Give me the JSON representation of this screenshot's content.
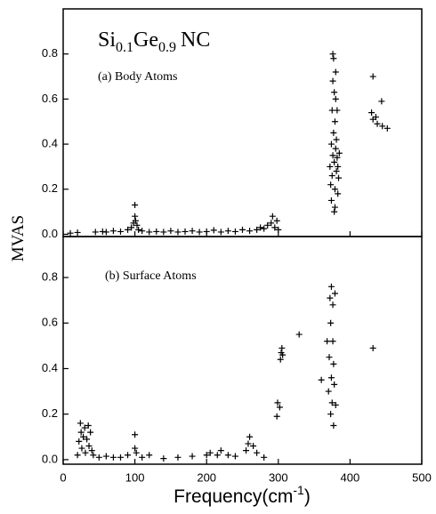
{
  "title": [
    "Si",
    "0.1",
    "Ge",
    "0.9",
    "NC"
  ],
  "y_label": "MVAS",
  "x_label": [
    "Frequency(cm",
    "-1",
    ")"
  ],
  "chart_data": [
    {
      "type": "scatter",
      "annotation": "(a) Body Atoms",
      "color": "#000000",
      "xlim": [
        0,
        500
      ],
      "xticks": [
        0,
        100,
        200,
        300,
        400,
        500
      ],
      "ylim": [
        -0.01,
        1.0
      ],
      "yticks": [
        {
          "value": 0,
          "label": "0.0"
        },
        0.2,
        0.4,
        0.6,
        0.8
      ],
      "x": [
        10,
        20,
        45,
        55,
        60,
        70,
        80,
        90,
        95,
        98,
        100,
        100,
        101,
        103,
        105,
        110,
        120,
        130,
        140,
        150,
        160,
        170,
        180,
        190,
        200,
        210,
        220,
        230,
        240,
        250,
        260,
        270,
        275,
        280,
        285,
        290,
        292,
        295,
        298,
        300,
        372,
        373,
        374,
        374,
        375,
        375,
        376,
        376,
        377,
        377,
        378,
        378,
        378,
        379,
        379,
        380,
        380,
        381,
        381,
        382,
        382,
        383,
        383,
        384,
        385,
        376,
        379,
        380,
        432,
        444,
        430,
        432,
        438,
        445,
        452,
        436
      ],
      "y": [
        0.005,
        0.008,
        0.01,
        0.012,
        0.01,
        0.015,
        0.012,
        0.02,
        0.03,
        0.05,
        0.08,
        0.13,
        0.06,
        0.04,
        0.02,
        0.015,
        0.01,
        0.012,
        0.01,
        0.015,
        0.01,
        0.012,
        0.015,
        0.01,
        0.012,
        0.018,
        0.01,
        0.015,
        0.012,
        0.02,
        0.015,
        0.02,
        0.03,
        0.025,
        0.04,
        0.05,
        0.08,
        0.03,
        0.06,
        0.02,
        0.3,
        0.22,
        0.4,
        0.15,
        0.55,
        0.26,
        0.35,
        0.68,
        0.78,
        0.45,
        0.1,
        0.32,
        0.63,
        0.2,
        0.5,
        0.38,
        0.72,
        0.28,
        0.42,
        0.34,
        0.55,
        0.18,
        0.3,
        0.25,
        0.36,
        0.8,
        0.12,
        0.6,
        0.7,
        0.59,
        0.54,
        0.51,
        0.49,
        0.48,
        0.47,
        0.52
      ]
    },
    {
      "type": "scatter",
      "annotation": "(b) Surface Atoms",
      "color": "#000000",
      "xlim": [
        0,
        500
      ],
      "xticks": [
        0,
        100,
        200,
        300,
        400,
        500
      ],
      "ylim": [
        -0.02,
        0.98
      ],
      "yticks": [
        {
          "value": 0,
          "label": "0.0"
        },
        0.2,
        0.4,
        0.6,
        0.8
      ],
      "x": [
        20,
        22,
        24,
        25,
        26,
        28,
        30,
        31,
        33,
        35,
        36,
        38,
        40,
        42,
        50,
        60,
        70,
        80,
        90,
        100,
        100,
        102,
        110,
        120,
        140,
        160,
        180,
        200,
        205,
        215,
        220,
        230,
        240,
        255,
        258,
        260,
        265,
        270,
        280,
        298,
        299,
        302,
        303,
        304,
        305,
        306,
        329,
        360,
        368,
        370,
        371,
        372,
        373,
        373,
        374,
        374,
        375,
        376,
        376,
        377,
        377,
        378,
        379,
        380,
        432
      ],
      "y": [
        0.02,
        0.08,
        0.16,
        0.12,
        0.05,
        0.1,
        0.14,
        0.03,
        0.09,
        0.15,
        0.06,
        0.12,
        0.04,
        0.02,
        0.01,
        0.015,
        0.01,
        0.01,
        0.02,
        0.05,
        0.11,
        0.03,
        0.01,
        0.02,
        0.005,
        0.01,
        0.015,
        0.02,
        0.03,
        0.02,
        0.04,
        0.02,
        0.015,
        0.04,
        0.07,
        0.1,
        0.06,
        0.03,
        0.01,
        0.19,
        0.25,
        0.23,
        0.44,
        0.47,
        0.49,
        0.46,
        0.55,
        0.35,
        0.52,
        0.3,
        0.45,
        0.71,
        0.2,
        0.6,
        0.76,
        0.36,
        0.25,
        0.52,
        0.68,
        0.15,
        0.42,
        0.33,
        0.73,
        0.24,
        0.49
      ]
    }
  ]
}
